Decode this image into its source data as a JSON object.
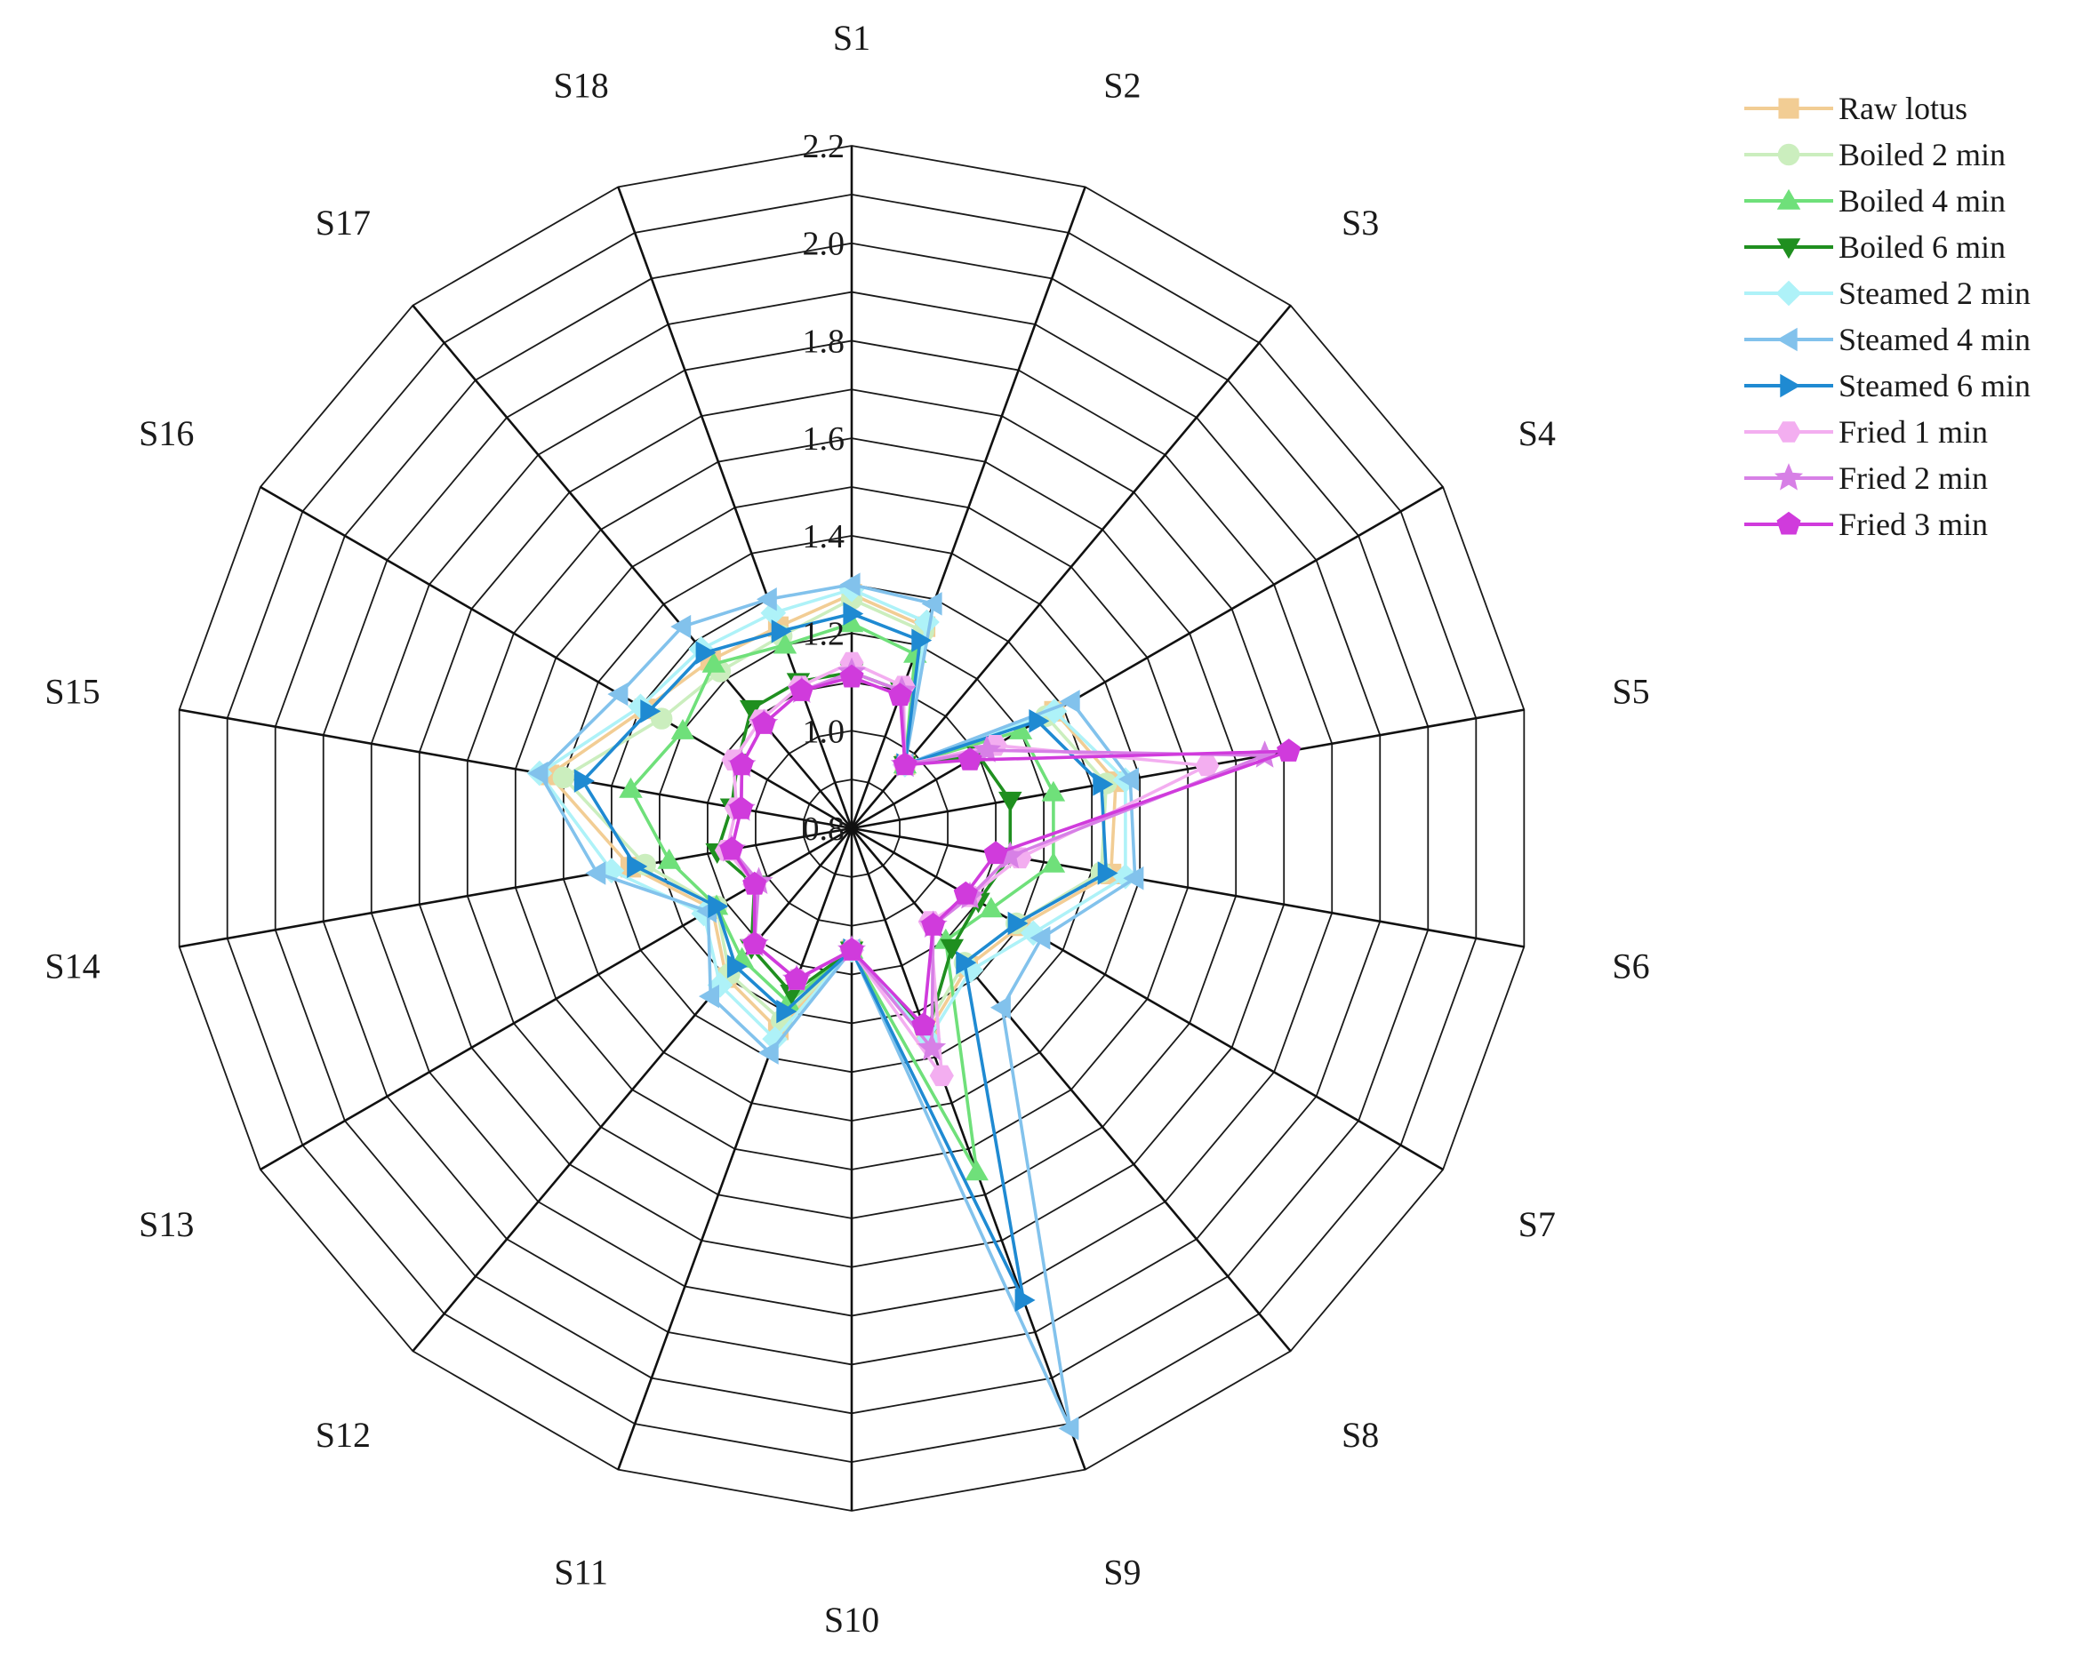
{
  "chart_data": {
    "type": "radar",
    "axes": [
      "S1",
      "S2",
      "S3",
      "S4",
      "S5",
      "S6",
      "S7",
      "S8",
      "S9",
      "S10",
      "S11",
      "S12",
      "S13",
      "S14",
      "S15",
      "S16",
      "S17",
      "S18"
    ],
    "rlim": [
      0.8,
      2.2
    ],
    "ticks": [
      "0.8",
      "1.0",
      "1.2",
      "1.4",
      "1.6",
      "1.8",
      "2.0",
      "2.2"
    ],
    "tick_values": [
      0.8,
      1.0,
      1.2,
      1.4,
      1.6,
      1.8,
      2.0,
      2.2
    ],
    "grid": true,
    "legend_position": "top-right",
    "series": [
      {
        "name": "Raw lotus",
        "color": "#f2cd94",
        "marker": "square",
        "values": [
          1.28,
          1.24,
          0.97,
          1.28,
          1.35,
          1.34,
          1.2,
          1.17,
          1.25,
          1.05,
          1.24,
          1.2,
          1.13,
          1.26,
          1.43,
          1.29,
          1.25,
          1.24
        ]
      },
      {
        "name": "Boiled 2 min",
        "color": "#cbeebe",
        "marker": "circle",
        "values": [
          1.27,
          1.23,
          0.97,
          1.26,
          1.33,
          1.32,
          1.19,
          1.16,
          1.24,
          1.05,
          1.22,
          1.19,
          1.12,
          1.23,
          1.4,
          1.25,
          1.22,
          1.22
        ]
      },
      {
        "name": "Boiled 4 min",
        "color": "#6fe07a",
        "marker": "triangle-up",
        "values": [
          1.22,
          1.18,
          0.97,
          1.2,
          1.22,
          1.22,
          1.13,
          1.1,
          1.55,
          1.05,
          1.18,
          1.15,
          1.12,
          1.18,
          1.26,
          1.2,
          1.24,
          1.2
        ]
      },
      {
        "name": "Boiled 6 min",
        "color": "#1f8f1f",
        "marker": "triangle-down",
        "values": [
          1.12,
          1.1,
          0.97,
          1.1,
          1.13,
          1.13,
          1.1,
          1.12,
          1.25,
          1.05,
          1.16,
          1.12,
          1.03,
          1.08,
          1.05,
          1.07,
          1.12,
          1.12
        ]
      },
      {
        "name": "Steamed 2 min",
        "color": "#aef2f8",
        "marker": "diamond",
        "values": [
          1.29,
          1.25,
          0.97,
          1.28,
          1.37,
          1.37,
          1.23,
          1.18,
          1.26,
          1.05,
          1.26,
          1.22,
          1.15,
          1.3,
          1.45,
          1.3,
          1.28,
          1.27
        ]
      },
      {
        "name": "Steamed 4 min",
        "color": "#82c2ec",
        "marker": "triangle-left",
        "values": [
          1.3,
          1.29,
          0.97,
          1.32,
          1.38,
          1.39,
          1.25,
          1.28,
          2.11,
          1.05,
          1.29,
          1.25,
          1.14,
          1.33,
          1.45,
          1.35,
          1.34,
          1.3
        ]
      },
      {
        "name": "Steamed 6 min",
        "color": "#1f8ad2",
        "marker": "triangle-right",
        "values": [
          1.24,
          1.21,
          0.97,
          1.24,
          1.32,
          1.33,
          1.19,
          1.16,
          1.83,
          1.05,
          1.2,
          1.17,
          1.12,
          1.25,
          1.36,
          1.28,
          1.27,
          1.23
        ]
      },
      {
        "name": "Fried 1 min",
        "color": "#f3aef0",
        "marker": "hexagon",
        "values": [
          1.14,
          1.11,
          0.97,
          1.14,
          1.54,
          1.15,
          1.08,
          1.05,
          1.34,
          1.05,
          1.13,
          1.11,
          1.03,
          1.06,
          1.04,
          1.08,
          1.09,
          1.11
        ]
      },
      {
        "name": "Fried 2 min",
        "color": "#d780e6",
        "marker": "star",
        "values": [
          1.12,
          1.1,
          0.97,
          1.12,
          1.66,
          1.13,
          1.08,
          1.06,
          1.28,
          1.05,
          1.13,
          1.11,
          1.02,
          1.05,
          1.03,
          1.06,
          1.08,
          1.1
        ]
      },
      {
        "name": "Fried 3 min",
        "color": "#d03bdc",
        "marker": "pentagon",
        "values": [
          1.11,
          1.09,
          0.97,
          1.08,
          1.71,
          1.1,
          1.07,
          1.06,
          1.23,
          1.05,
          1.13,
          1.11,
          1.03,
          1.05,
          1.03,
          1.06,
          1.08,
          1.1
        ]
      }
    ]
  }
}
